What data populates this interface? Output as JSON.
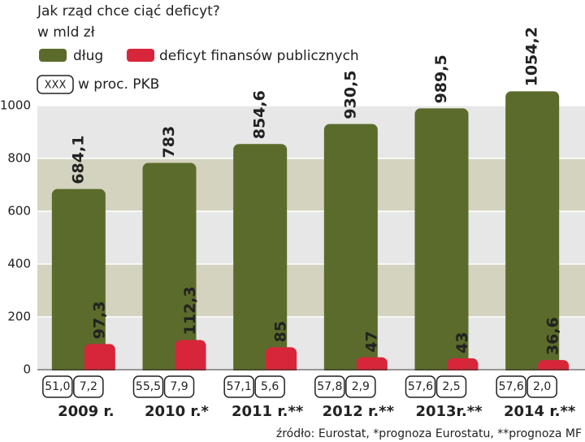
{
  "chart_data": {
    "type": "bar",
    "title": "Jak rząd chce ciąć deficyt?",
    "subtitle": "w mld zł",
    "pkb_key": "XXX",
    "pkb_note": "w proc. PKB",
    "source": "źródło: Eurostat, *prognoza Eurostatu, **prognoza MF",
    "categories": [
      "2009 r.",
      "2010 r.*",
      "2011 r.**",
      "2012 r.**",
      "2013r.**",
      "2014 r.**"
    ],
    "series": [
      {
        "name": "dług",
        "color": "#5b6b2b",
        "values": [
          684.1,
          783,
          854.6,
          930.5,
          989.5,
          1054.2
        ],
        "value_labels": [
          "684,1",
          "783",
          "854,6",
          "930,5",
          "989,5",
          "1054,2"
        ],
        "pkb_labels": [
          "51,0",
          "55,5",
          "57,1",
          "57,8",
          "57,6",
          "57,6"
        ]
      },
      {
        "name": "deficyt finansów publicznych",
        "color": "#d7263a",
        "values": [
          97.3,
          112.3,
          85,
          47,
          43,
          36.6
        ],
        "value_labels": [
          "97,3",
          "112,3",
          "85",
          "47",
          "43",
          "36,6"
        ],
        "pkb_labels": [
          "7,2",
          "7,9",
          "5,6",
          "2,9",
          "2,5",
          "2,0"
        ]
      }
    ],
    "ylim": [
      0,
      1000
    ],
    "yticks": [
      0,
      200,
      400,
      600,
      800,
      1000
    ],
    "grid": true
  }
}
